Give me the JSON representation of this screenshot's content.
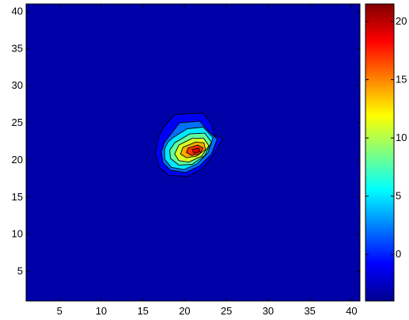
{
  "chart_data": {
    "type": "contourf",
    "title": "",
    "xlabel": "",
    "ylabel": "",
    "xlim": [
      1,
      41
    ],
    "ylim": [
      1,
      41
    ],
    "x_ticks": [
      5,
      10,
      15,
      20,
      25,
      30,
      35,
      40
    ],
    "y_ticks": [
      5,
      10,
      15,
      20,
      25,
      30,
      35,
      40
    ],
    "colormap": "jet",
    "clim": [
      -4,
      21.5
    ],
    "background_level": -3,
    "peak": {
      "x": 21.3,
      "y": 21.3,
      "value": 21
    },
    "contours": [
      {
        "level": -1,
        "points": [
          [
            17.4,
            24.3
          ],
          [
            18.8,
            26.1
          ],
          [
            22.2,
            26.3
          ],
          [
            23.2,
            24.9
          ],
          [
            23.6,
            23.3
          ],
          [
            24.6,
            22.9
          ],
          [
            23.4,
            20.6
          ],
          [
            22.1,
            18.8
          ],
          [
            20.4,
            17.8
          ],
          [
            18.1,
            17.9
          ],
          [
            16.9,
            19.1
          ],
          [
            16.5,
            20.8
          ],
          [
            16.8,
            22.8
          ]
        ]
      },
      {
        "level": 2,
        "points": [
          [
            18.3,
            23.4
          ],
          [
            19.4,
            25.0
          ],
          [
            21.8,
            25.2
          ],
          [
            22.9,
            23.8
          ],
          [
            23.9,
            22.8
          ],
          [
            23.2,
            20.8
          ],
          [
            21.8,
            19.2
          ],
          [
            20.1,
            18.3
          ],
          [
            18.3,
            18.6
          ],
          [
            17.4,
            19.6
          ],
          [
            17.2,
            21.1
          ],
          [
            17.6,
            22.4
          ]
        ]
      },
      {
        "level": 5,
        "points": [
          [
            18.6,
            23.0
          ],
          [
            20.3,
            24.2
          ],
          [
            22.2,
            24.4
          ],
          [
            23.4,
            23.0
          ],
          [
            22.8,
            21.0
          ],
          [
            21.5,
            19.5
          ],
          [
            19.9,
            18.7
          ],
          [
            18.4,
            19.0
          ],
          [
            17.6,
            20.1
          ],
          [
            17.6,
            21.5
          ],
          [
            18.0,
            22.4
          ]
        ]
      },
      {
        "level": 8,
        "points": [
          [
            18.8,
            22.3
          ],
          [
            20.6,
            23.5
          ],
          [
            22.4,
            23.6
          ],
          [
            23.2,
            22.4
          ],
          [
            22.4,
            20.6
          ],
          [
            20.9,
            19.4
          ],
          [
            19.3,
            19.3
          ],
          [
            18.3,
            20.2
          ],
          [
            18.2,
            21.3
          ]
        ]
      },
      {
        "level": 11,
        "points": [
          [
            19.3,
            22.0
          ],
          [
            20.9,
            22.9
          ],
          [
            22.3,
            22.9
          ],
          [
            22.9,
            21.9
          ],
          [
            22.0,
            20.5
          ],
          [
            20.5,
            19.7
          ],
          [
            19.3,
            19.9
          ],
          [
            18.8,
            20.8
          ]
        ]
      },
      {
        "level": 14,
        "points": [
          [
            19.8,
            21.7
          ],
          [
            21.3,
            22.4
          ],
          [
            22.3,
            22.3
          ],
          [
            22.5,
            21.4
          ],
          [
            21.4,
            20.5
          ],
          [
            20.2,
            20.3
          ],
          [
            19.5,
            20.8
          ]
        ]
      },
      {
        "level": 17,
        "points": [
          [
            20.4,
            21.6
          ],
          [
            21.6,
            22.0
          ],
          [
            22.2,
            21.6
          ],
          [
            21.8,
            20.8
          ],
          [
            20.8,
            20.6
          ],
          [
            20.2,
            21.0
          ]
        ]
      },
      {
        "level": 19,
        "points": [
          [
            20.9,
            21.4
          ],
          [
            21.7,
            21.6
          ],
          [
            21.8,
            21.1
          ],
          [
            21.1,
            20.9
          ]
        ]
      }
    ],
    "colorbar": {
      "ticks": [
        0,
        5,
        10,
        15,
        20
      ],
      "range": [
        -4,
        21.5
      ]
    }
  }
}
